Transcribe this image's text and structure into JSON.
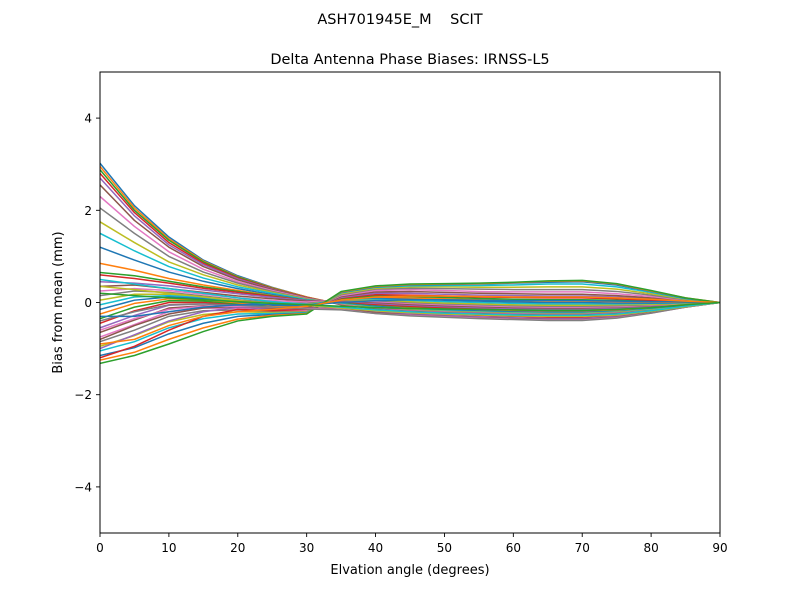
{
  "chart_data": {
    "type": "line",
    "suptitle": "ASH701945E_M    SCIT",
    "title": "Delta Antenna Phase Biases: IRNSS-L5",
    "xlabel": "Elvation angle (degrees)",
    "ylabel": "Bias from mean (mm)",
    "xlim": [
      0,
      90
    ],
    "ylim": [
      -5,
      5
    ],
    "xticks": [
      "0",
      "10",
      "20",
      "30",
      "40",
      "50",
      "60",
      "70",
      "80",
      "90"
    ],
    "yticks": [
      "−4",
      "−2",
      "0",
      "2",
      "4"
    ],
    "grid": false,
    "legend": "none",
    "x": [
      0,
      5,
      10,
      15,
      20,
      25,
      30,
      35,
      40,
      45,
      50,
      55,
      60,
      65,
      70,
      75,
      80,
      85,
      90
    ],
    "series": [
      {
        "values": [
          3.02,
          2.1,
          1.42,
          0.92,
          0.58,
          0.33,
          0.12,
          -0.05,
          -0.14,
          -0.19,
          -0.22,
          -0.24,
          -0.26,
          -0.27,
          -0.27,
          -0.24,
          -0.17,
          -0.08,
          0
        ]
      },
      {
        "values": [
          2.95,
          2.05,
          1.38,
          0.9,
          0.56,
          0.32,
          0.12,
          -0.04,
          -0.13,
          -0.19,
          -0.22,
          -0.24,
          -0.26,
          -0.27,
          -0.27,
          -0.24,
          -0.17,
          -0.08,
          0
        ]
      },
      {
        "values": [
          2.88,
          2.0,
          1.35,
          0.88,
          0.55,
          0.31,
          0.11,
          -0.04,
          -0.13,
          -0.19,
          -0.22,
          -0.24,
          -0.26,
          -0.27,
          -0.27,
          -0.24,
          -0.17,
          -0.08,
          0
        ]
      },
      {
        "values": [
          2.8,
          1.95,
          1.3,
          0.85,
          0.53,
          0.3,
          0.11,
          -0.04,
          -0.12,
          -0.18,
          -0.21,
          -0.23,
          -0.25,
          -0.26,
          -0.26,
          -0.23,
          -0.16,
          -0.08,
          0
        ]
      },
      {
        "values": [
          2.7,
          1.88,
          1.25,
          0.82,
          0.51,
          0.29,
          0.1,
          -0.03,
          -0.12,
          -0.18,
          -0.21,
          -0.23,
          -0.25,
          -0.26,
          -0.26,
          -0.23,
          -0.16,
          -0.08,
          0
        ]
      },
      {
        "values": [
          2.55,
          1.78,
          1.2,
          0.78,
          0.49,
          0.28,
          0.1,
          -0.03,
          -0.11,
          -0.17,
          -0.2,
          -0.22,
          -0.24,
          -0.25,
          -0.25,
          -0.22,
          -0.16,
          -0.08,
          0
        ]
      },
      {
        "values": [
          2.3,
          1.65,
          1.1,
          0.72,
          0.45,
          0.26,
          0.09,
          -0.03,
          -0.11,
          -0.16,
          -0.19,
          -0.21,
          -0.23,
          -0.24,
          -0.24,
          -0.21,
          -0.15,
          -0.07,
          0
        ]
      },
      {
        "values": [
          2.05,
          1.5,
          1.0,
          0.66,
          0.42,
          0.24,
          0.08,
          -0.02,
          -0.1,
          -0.15,
          -0.18,
          -0.2,
          -0.22,
          -0.23,
          -0.23,
          -0.2,
          -0.15,
          -0.07,
          0
        ]
      },
      {
        "values": [
          1.75,
          1.3,
          0.88,
          0.6,
          0.38,
          0.22,
          0.07,
          -0.02,
          -0.09,
          -0.14,
          -0.17,
          -0.19,
          -0.21,
          -0.22,
          -0.22,
          -0.19,
          -0.14,
          -0.07,
          0
        ]
      },
      {
        "values": [
          1.5,
          1.12,
          0.78,
          0.53,
          0.34,
          0.2,
          0.06,
          -0.01,
          -0.08,
          -0.13,
          -0.16,
          -0.18,
          -0.2,
          -0.21,
          -0.21,
          -0.18,
          -0.13,
          -0.06,
          0
        ]
      },
      {
        "values": [
          1.2,
          0.92,
          0.66,
          0.46,
          0.3,
          0.17,
          0.05,
          0.0,
          -0.07,
          -0.12,
          -0.15,
          -0.17,
          -0.19,
          -0.2,
          -0.2,
          -0.17,
          -0.12,
          -0.06,
          0
        ]
      },
      {
        "values": [
          0.85,
          0.7,
          0.52,
          0.38,
          0.26,
          0.15,
          0.04,
          0.01,
          -0.05,
          -0.1,
          -0.13,
          -0.15,
          -0.17,
          -0.18,
          -0.18,
          -0.16,
          -0.11,
          -0.05,
          0
        ]
      },
      {
        "values": [
          0.65,
          0.58,
          0.46,
          0.34,
          0.24,
          0.14,
          0.04,
          0.01,
          -0.05,
          -0.09,
          -0.12,
          -0.14,
          -0.16,
          -0.17,
          -0.17,
          -0.15,
          -0.11,
          -0.05,
          0
        ]
      },
      {
        "values": [
          0.6,
          0.52,
          0.42,
          0.31,
          0.22,
          0.13,
          0.04,
          0.02,
          -0.04,
          -0.08,
          -0.11,
          -0.13,
          -0.15,
          -0.16,
          -0.16,
          -0.14,
          -0.1,
          -0.05,
          0
        ]
      },
      {
        "values": [
          0.45,
          0.42,
          0.36,
          0.27,
          0.19,
          0.11,
          0.04,
          0.03,
          -0.02,
          -0.06,
          -0.09,
          -0.11,
          -0.13,
          -0.14,
          -0.14,
          -0.12,
          -0.09,
          -0.04,
          0
        ]
      },
      {
        "values": [
          0.35,
          0.38,
          0.3,
          0.22,
          0.14,
          0.08,
          0.03,
          0.04,
          0.0,
          -0.04,
          -0.07,
          -0.09,
          -0.11,
          -0.12,
          -0.12,
          -0.1,
          -0.07,
          -0.03,
          0
        ]
      },
      {
        "values": [
          0.25,
          0.3,
          0.26,
          0.18,
          0.1,
          0.04,
          0.01,
          0.05,
          0.02,
          -0.02,
          -0.05,
          -0.07,
          -0.09,
          -0.1,
          -0.1,
          -0.09,
          -0.06,
          -0.03,
          0
        ]
      },
      {
        "values": [
          0.15,
          0.25,
          0.22,
          0.14,
          0.06,
          0.0,
          -0.02,
          0.05,
          0.04,
          0.0,
          -0.03,
          -0.05,
          -0.07,
          -0.08,
          -0.08,
          -0.07,
          -0.05,
          -0.02,
          0
        ]
      },
      {
        "values": [
          0.05,
          0.18,
          0.18,
          0.12,
          0.04,
          -0.03,
          -0.04,
          0.06,
          0.06,
          0.02,
          -0.01,
          -0.03,
          -0.05,
          -0.06,
          -0.06,
          -0.05,
          -0.04,
          -0.02,
          0
        ]
      },
      {
        "values": [
          -0.05,
          0.12,
          0.15,
          0.1,
          0.02,
          -0.05,
          -0.06,
          0.07,
          0.08,
          0.05,
          0.02,
          0.0,
          -0.02,
          -0.03,
          -0.03,
          -0.03,
          -0.02,
          -0.01,
          0
        ]
      },
      {
        "values": [
          -0.15,
          0.05,
          0.12,
          0.08,
          0.0,
          -0.07,
          -0.08,
          0.08,
          0.1,
          0.08,
          0.05,
          0.03,
          0.01,
          0.0,
          0.0,
          -0.01,
          -0.01,
          0.0,
          0
        ]
      },
      {
        "values": [
          -0.25,
          -0.02,
          0.08,
          0.05,
          -0.02,
          -0.09,
          -0.1,
          0.08,
          0.12,
          0.1,
          0.08,
          0.06,
          0.04,
          0.03,
          0.03,
          0.02,
          0.01,
          0.0,
          0
        ]
      },
      {
        "values": [
          -0.35,
          -0.1,
          0.04,
          0.03,
          -0.04,
          -0.1,
          -0.12,
          0.09,
          0.14,
          0.13,
          0.11,
          0.09,
          0.07,
          0.06,
          0.06,
          0.05,
          0.03,
          0.01,
          0
        ]
      },
      {
        "values": [
          -0.45,
          -0.18,
          0.0,
          0.0,
          -0.06,
          -0.12,
          -0.14,
          0.1,
          0.17,
          0.16,
          0.14,
          0.12,
          0.11,
          0.1,
          0.1,
          0.08,
          0.05,
          0.02,
          0
        ]
      },
      {
        "values": [
          -0.55,
          -0.28,
          -0.06,
          -0.03,
          -0.08,
          -0.14,
          -0.15,
          0.11,
          0.2,
          0.2,
          0.18,
          0.16,
          0.15,
          0.14,
          0.14,
          0.12,
          0.08,
          0.03,
          0
        ]
      },
      {
        "values": [
          -0.65,
          -0.38,
          -0.12,
          -0.07,
          -0.1,
          -0.16,
          -0.17,
          0.13,
          0.23,
          0.24,
          0.22,
          0.2,
          0.19,
          0.18,
          0.18,
          0.15,
          0.1,
          0.04,
          0
        ]
      },
      {
        "values": [
          -0.75,
          -0.48,
          -0.2,
          -0.12,
          -0.13,
          -0.18,
          -0.18,
          0.15,
          0.26,
          0.28,
          0.26,
          0.24,
          0.23,
          0.23,
          0.23,
          0.19,
          0.13,
          0.05,
          0
        ]
      },
      {
        "values": [
          -0.85,
          -0.6,
          -0.3,
          -0.18,
          -0.16,
          -0.2,
          -0.2,
          0.17,
          0.29,
          0.31,
          0.3,
          0.29,
          0.28,
          0.28,
          0.28,
          0.24,
          0.16,
          0.06,
          0
        ]
      },
      {
        "values": [
          -0.95,
          -0.72,
          -0.42,
          -0.26,
          -0.2,
          -0.22,
          -0.21,
          0.19,
          0.31,
          0.34,
          0.34,
          0.33,
          0.33,
          0.34,
          0.34,
          0.29,
          0.19,
          0.07,
          0
        ]
      },
      {
        "values": [
          -1.05,
          -0.85,
          -0.55,
          -0.35,
          -0.25,
          -0.24,
          -0.22,
          0.21,
          0.33,
          0.36,
          0.37,
          0.37,
          0.38,
          0.4,
          0.4,
          0.34,
          0.22,
          0.08,
          0
        ]
      },
      {
        "values": [
          -1.15,
          -0.98,
          -0.68,
          -0.45,
          -0.3,
          -0.26,
          -0.23,
          0.22,
          0.34,
          0.38,
          0.39,
          0.4,
          0.42,
          0.44,
          0.45,
          0.38,
          0.24,
          0.09,
          0
        ]
      },
      {
        "values": [
          -1.25,
          -1.08,
          -0.8,
          -0.55,
          -0.36,
          -0.28,
          -0.24,
          0.23,
          0.35,
          0.39,
          0.4,
          0.41,
          0.43,
          0.46,
          0.47,
          0.4,
          0.25,
          0.1,
          0
        ]
      },
      {
        "values": [
          -1.32,
          -1.15,
          -0.9,
          -0.63,
          -0.4,
          -0.3,
          -0.25,
          0.24,
          0.36,
          0.4,
          0.41,
          0.42,
          0.44,
          0.47,
          0.48,
          0.41,
          0.26,
          0.1,
          0
        ]
      },
      {
        "values": [
          -1.2,
          -0.95,
          -0.6,
          -0.3,
          -0.15,
          -0.18,
          -0.15,
          -0.1,
          -0.18,
          -0.22,
          -0.25,
          -0.28,
          -0.3,
          -0.32,
          -0.32,
          -0.28,
          -0.2,
          -0.09,
          0
        ]
      },
      {
        "values": [
          -1.0,
          -0.7,
          -0.4,
          -0.2,
          -0.1,
          -0.14,
          -0.12,
          -0.12,
          -0.2,
          -0.25,
          -0.28,
          -0.31,
          -0.33,
          -0.35,
          -0.35,
          -0.3,
          -0.21,
          -0.1,
          0
        ]
      },
      {
        "values": [
          -0.8,
          -0.5,
          -0.25,
          -0.12,
          -0.08,
          -0.12,
          -0.12,
          -0.14,
          -0.22,
          -0.27,
          -0.3,
          -0.33,
          -0.35,
          -0.37,
          -0.37,
          -0.32,
          -0.22,
          -0.1,
          0
        ]
      },
      {
        "values": [
          -0.6,
          -0.35,
          -0.15,
          -0.08,
          -0.08,
          -0.1,
          -0.13,
          -0.15,
          -0.24,
          -0.28,
          -0.31,
          -0.34,
          -0.36,
          -0.38,
          -0.38,
          -0.33,
          -0.23,
          -0.1,
          0
        ]
      },
      {
        "values": [
          -0.4,
          -0.2,
          -0.05,
          -0.03,
          -0.06,
          -0.1,
          -0.14,
          -0.16,
          -0.24,
          -0.29,
          -0.32,
          -0.35,
          -0.37,
          -0.39,
          -0.39,
          -0.34,
          -0.23,
          -0.1,
          0
        ]
      },
      {
        "values": [
          0.35,
          0.28,
          0.2,
          0.12,
          0.04,
          -0.02,
          -0.06,
          -0.12,
          -0.18,
          -0.22,
          -0.25,
          -0.27,
          -0.29,
          -0.3,
          -0.3,
          -0.27,
          -0.19,
          -0.09,
          0
        ]
      },
      {
        "values": [
          0.5,
          0.4,
          0.3,
          0.2,
          0.1,
          0.02,
          -0.04,
          -0.1,
          -0.16,
          -0.2,
          -0.23,
          -0.25,
          -0.27,
          -0.28,
          -0.28,
          -0.25,
          -0.18,
          -0.08,
          0
        ]
      },
      {
        "values": [
          -0.3,
          -0.3,
          -0.2,
          -0.1,
          -0.05,
          -0.05,
          -0.05,
          0.0,
          0.04,
          0.06,
          0.06,
          0.05,
          0.04,
          0.04,
          0.04,
          0.03,
          0.02,
          0.01,
          0
        ]
      },
      {
        "values": [
          -0.9,
          -0.8,
          -0.5,
          -0.3,
          -0.2,
          -0.15,
          -0.08,
          0.05,
          0.12,
          0.14,
          0.14,
          0.13,
          0.12,
          0.12,
          0.12,
          0.1,
          0.07,
          0.03,
          0
        ]
      },
      {
        "values": [
          0.2,
          0.15,
          0.1,
          0.06,
          0.02,
          -0.02,
          -0.05,
          -0.08,
          -0.11,
          -0.13,
          -0.14,
          -0.15,
          -0.16,
          -0.17,
          -0.17,
          -0.15,
          -0.11,
          -0.05,
          0
        ]
      }
    ]
  }
}
